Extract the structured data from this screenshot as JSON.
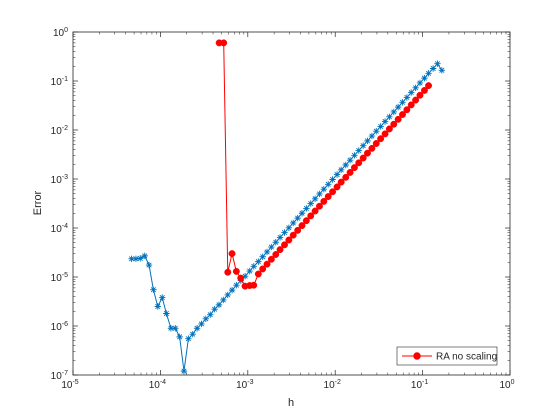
{
  "chart_data": {
    "type": "line",
    "title": "",
    "xlabel": "h",
    "ylabel": "Error",
    "xscale": "log",
    "yscale": "log",
    "xlim": [
      1e-05,
      1
    ],
    "ylim": [
      1e-07,
      1
    ],
    "x_tick_exponents": [
      "-5",
      "-4",
      "-3",
      "-2",
      "-1",
      "0"
    ],
    "y_tick_exponents": [
      "-7",
      "-6",
      "-5",
      "-4",
      "-3",
      "-2",
      "-1",
      "0"
    ],
    "tick_base": "10",
    "grid": false,
    "legend_position": "bottom-right",
    "series": [
      {
        "color": "#0072bd",
        "marker": "asterisk",
        "x": [
          4.68e-05,
          5.25e-05,
          5.89e-05,
          6.61e-05,
          7.41e-05,
          8.32e-05,
          9.33e-05,
          0.000105,
          0.000117,
          0.000132,
          0.000148,
          0.000166,
          0.000186,
          0.000209,
          0.000234,
          0.000263,
          0.000295,
          0.000331,
          0.000372,
          0.000417,
          0.000468,
          0.000525,
          0.000589,
          0.000661,
          0.000741,
          0.000832,
          0.000933,
          0.00105,
          0.00117,
          0.00132,
          0.00148,
          0.00166,
          0.00186,
          0.00209,
          0.00234,
          0.00263,
          0.00295,
          0.00331,
          0.00372,
          0.00417,
          0.00468,
          0.00525,
          0.00589,
          0.00661,
          0.00741,
          0.00832,
          0.00933,
          0.0105,
          0.0117,
          0.0132,
          0.0148,
          0.0166,
          0.0186,
          0.0209,
          0.0234,
          0.0263,
          0.0295,
          0.0331,
          0.0372,
          0.0417,
          0.0468,
          0.0525,
          0.0589,
          0.0661,
          0.0741,
          0.0832,
          0.0933,
          0.105,
          0.117,
          0.132,
          0.148,
          0.166
        ],
        "values": [
          2.35e-05,
          2.35e-05,
          2.4e-05,
          2.7e-05,
          1.75e-05,
          5.5e-06,
          2.5e-06,
          3.8e-06,
          1.8e-06,
          9e-07,
          9e-07,
          6e-07,
          1.2e-07,
          5.5e-07,
          6.8e-07,
          9e-07,
          1.1e-06,
          1.4e-06,
          1.7e-06,
          2.2e-06,
          2.7e-06,
          3.4e-06,
          4.3e-06,
          5.4e-06,
          6.8e-06,
          8.4e-06,
          1.04e-05,
          1.32e-05,
          1.65e-05,
          2.06e-05,
          2.59e-05,
          3.25e-05,
          4.08e-05,
          5.12e-05,
          6.43e-05,
          8.06e-05,
          0.000101,
          0.000127,
          0.000159,
          0.0002,
          0.000251,
          0.000315,
          0.000395,
          0.000495,
          0.000621,
          0.000779,
          0.000977,
          0.00123,
          0.00154,
          0.00193,
          0.00242,
          0.00304,
          0.00381,
          0.00478,
          0.006,
          0.00752,
          0.00944,
          0.0118,
          0.0149,
          0.0186,
          0.0234,
          0.0293,
          0.0368,
          0.0462,
          0.058,
          0.0727,
          0.0912,
          0.1144,
          0.1435,
          0.18,
          0.226,
          0.165
        ]
      },
      {
        "name": "RA no scaling",
        "color": "#ff0000",
        "marker": "circle",
        "x": [
          0.00047,
          0.00053,
          0.00059,
          0.00066,
          0.00074,
          0.00083,
          0.00093,
          0.00105,
          0.00117,
          0.00132,
          0.00148,
          0.00166,
          0.00186,
          0.00209,
          0.00234,
          0.00263,
          0.00295,
          0.00331,
          0.00372,
          0.00417,
          0.00468,
          0.00525,
          0.00589,
          0.00661,
          0.00741,
          0.00832,
          0.00933,
          0.0105,
          0.0117,
          0.0132,
          0.0148,
          0.0166,
          0.0186,
          0.0209,
          0.0234,
          0.0263,
          0.0295,
          0.0331,
          0.0372,
          0.0417,
          0.0468,
          0.0525,
          0.0589,
          0.0661,
          0.0741,
          0.0832,
          0.0933,
          0.105,
          0.117
        ],
        "values": [
          0.6,
          0.6,
          1.25e-05,
          3e-05,
          1.3e-05,
          9.5e-06,
          6.5e-06,
          6.7e-06,
          6.8e-06,
          1.15e-05,
          1.46e-05,
          1.83e-05,
          2.3e-05,
          2.88e-05,
          3.62e-05,
          4.54e-05,
          5.69e-05,
          7.14e-05,
          8.95e-05,
          0.000112,
          0.000141,
          0.000177,
          0.000222,
          0.000278,
          0.000349,
          0.000438,
          0.000549,
          0.000689,
          0.000864,
          0.00108,
          0.00136,
          0.00171,
          0.00214,
          0.00268,
          0.00337,
          0.00422,
          0.0053,
          0.00664,
          0.00833,
          0.0105,
          0.0131,
          0.0165,
          0.0207,
          0.0259,
          0.0325,
          0.0408,
          0.0512,
          0.0642,
          0.0805
        ]
      }
    ]
  }
}
